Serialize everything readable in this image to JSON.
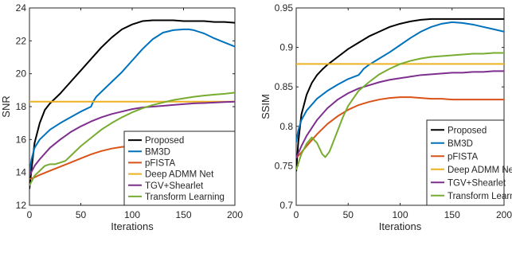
{
  "chart_data": [
    {
      "type": "line",
      "title": "",
      "xlabel": "Iterations",
      "ylabel": "SNR",
      "xlim": [
        0,
        200
      ],
      "ylim": [
        12,
        24
      ],
      "xticks": [
        0,
        50,
        100,
        150,
        200
      ],
      "yticks": [
        12,
        14,
        16,
        18,
        20,
        22,
        24
      ],
      "grid": false,
      "legend": "bottom-right",
      "series": [
        {
          "name": "Proposed",
          "color": "#000000",
          "x": [
            0,
            2,
            5,
            10,
            15,
            20,
            30,
            40,
            50,
            60,
            70,
            80,
            90,
            100,
            110,
            120,
            130,
            140,
            150,
            160,
            170,
            180,
            190,
            200
          ],
          "y": [
            13.0,
            14.2,
            15.8,
            17.0,
            17.8,
            18.2,
            18.8,
            19.5,
            20.2,
            20.9,
            21.6,
            22.2,
            22.7,
            23.0,
            23.2,
            23.25,
            23.25,
            23.25,
            23.2,
            23.2,
            23.2,
            23.15,
            23.15,
            23.1
          ]
        },
        {
          "name": "BM3D",
          "color": "#0072BD",
          "x": [
            0,
            2,
            5,
            10,
            20,
            30,
            40,
            50,
            60,
            62,
            65,
            70,
            80,
            90,
            100,
            110,
            120,
            130,
            140,
            150,
            155,
            160,
            170,
            180,
            190,
            200
          ],
          "y": [
            14.0,
            14.8,
            15.5,
            16.0,
            16.6,
            17.0,
            17.35,
            17.7,
            18.0,
            18.3,
            18.6,
            18.9,
            19.5,
            20.1,
            20.8,
            21.5,
            22.1,
            22.5,
            22.65,
            22.7,
            22.7,
            22.65,
            22.45,
            22.15,
            21.9,
            21.65
          ]
        },
        {
          "name": "pFISTA",
          "color": "#D95319",
          "x": [
            0,
            5,
            10,
            20,
            30,
            40,
            50,
            60,
            70,
            80,
            90,
            100,
            110,
            120,
            130,
            140,
            150,
            160,
            170,
            180,
            190,
            200
          ],
          "y": [
            13.6,
            13.7,
            13.85,
            14.1,
            14.35,
            14.6,
            14.85,
            15.1,
            15.3,
            15.45,
            15.55,
            15.6,
            15.6,
            15.55,
            15.5,
            15.5,
            15.5,
            15.5,
            15.5,
            15.5,
            15.5,
            15.5
          ]
        },
        {
          "name": "Deep ADMM Net",
          "color": "#EDB120",
          "x": [
            0,
            200
          ],
          "y": [
            18.3,
            18.3
          ]
        },
        {
          "name": "TGV+Shearlet",
          "color": "#7E2F8E",
          "x": [
            0,
            5,
            10,
            20,
            30,
            40,
            50,
            60,
            70,
            80,
            90,
            100,
            110,
            120,
            130,
            140,
            150,
            160,
            170,
            180,
            190,
            200
          ],
          "y": [
            13.8,
            14.4,
            14.8,
            15.5,
            16.0,
            16.45,
            16.8,
            17.1,
            17.35,
            17.55,
            17.7,
            17.85,
            17.95,
            18.0,
            18.05,
            18.1,
            18.15,
            18.2,
            18.22,
            18.25,
            18.28,
            18.3
          ]
        },
        {
          "name": "Transform Learning",
          "color": "#77AC30",
          "x": [
            0,
            5,
            10,
            15,
            20,
            25,
            30,
            35,
            40,
            50,
            60,
            70,
            80,
            90,
            100,
            110,
            120,
            130,
            140,
            150,
            160,
            170,
            180,
            190,
            200
          ],
          "y": [
            13.2,
            13.8,
            14.1,
            14.4,
            14.5,
            14.5,
            14.6,
            14.7,
            15.0,
            15.6,
            16.1,
            16.6,
            17.0,
            17.35,
            17.65,
            17.9,
            18.1,
            18.25,
            18.4,
            18.5,
            18.6,
            18.67,
            18.73,
            18.78,
            18.85
          ]
        }
      ]
    },
    {
      "type": "line",
      "title": "",
      "xlabel": "Iterations",
      "ylabel": "SSIM",
      "xlim": [
        0,
        200
      ],
      "ylim": [
        0.7,
        0.95
      ],
      "xticks": [
        0,
        50,
        100,
        150,
        200
      ],
      "yticks": [
        0.7,
        0.75,
        0.8,
        0.85,
        0.9,
        0.95
      ],
      "ytick_labels": [
        "0.7",
        "0.75",
        "0.8",
        "0.85",
        "0.9",
        "0.95"
      ],
      "grid": false,
      "legend": "bottom-right",
      "series": [
        {
          "name": "Proposed",
          "color": "#000000",
          "x": [
            0,
            2,
            5,
            10,
            15,
            20,
            25,
            30,
            40,
            50,
            60,
            70,
            80,
            90,
            100,
            110,
            120,
            130,
            140,
            150,
            160,
            170,
            180,
            190,
            200
          ],
          "y": [
            0.743,
            0.78,
            0.815,
            0.84,
            0.855,
            0.865,
            0.872,
            0.878,
            0.888,
            0.898,
            0.906,
            0.914,
            0.92,
            0.926,
            0.93,
            0.933,
            0.935,
            0.936,
            0.936,
            0.936,
            0.936,
            0.936,
            0.936,
            0.936,
            0.936
          ]
        },
        {
          "name": "BM3D",
          "color": "#0072BD",
          "x": [
            0,
            2,
            5,
            10,
            20,
            30,
            40,
            50,
            60,
            62,
            65,
            70,
            80,
            90,
            100,
            110,
            120,
            130,
            140,
            150,
            160,
            170,
            180,
            190,
            200
          ],
          "y": [
            0.78,
            0.795,
            0.808,
            0.82,
            0.835,
            0.845,
            0.853,
            0.86,
            0.865,
            0.868,
            0.873,
            0.878,
            0.886,
            0.894,
            0.903,
            0.912,
            0.92,
            0.926,
            0.93,
            0.932,
            0.931,
            0.929,
            0.926,
            0.923,
            0.92
          ]
        },
        {
          "name": "pFISTA",
          "color": "#D95319",
          "x": [
            0,
            5,
            10,
            20,
            30,
            40,
            50,
            60,
            70,
            80,
            90,
            100,
            110,
            120,
            130,
            140,
            150,
            160,
            170,
            180,
            190,
            200
          ],
          "y": [
            0.76,
            0.767,
            0.775,
            0.79,
            0.803,
            0.813,
            0.821,
            0.827,
            0.831,
            0.834,
            0.836,
            0.837,
            0.837,
            0.836,
            0.835,
            0.835,
            0.834,
            0.834,
            0.834,
            0.834,
            0.834,
            0.834
          ]
        },
        {
          "name": "Deep ADMM Net",
          "color": "#EDB120",
          "x": [
            0,
            200
          ],
          "y": [
            0.879,
            0.879
          ]
        },
        {
          "name": "TGV+Shearlet",
          "color": "#7E2F8E",
          "x": [
            0,
            5,
            10,
            20,
            30,
            40,
            50,
            60,
            70,
            80,
            90,
            100,
            110,
            120,
            130,
            140,
            150,
            160,
            170,
            180,
            190,
            200
          ],
          "y": [
            0.76,
            0.775,
            0.788,
            0.808,
            0.823,
            0.834,
            0.842,
            0.848,
            0.852,
            0.856,
            0.859,
            0.861,
            0.863,
            0.865,
            0.866,
            0.867,
            0.868,
            0.868,
            0.869,
            0.869,
            0.87,
            0.87
          ]
        },
        {
          "name": "Transform Learning",
          "color": "#77AC30",
          "x": [
            0,
            5,
            10,
            15,
            20,
            25,
            28,
            32,
            35,
            40,
            45,
            50,
            60,
            70,
            80,
            90,
            100,
            110,
            120,
            130,
            140,
            150,
            160,
            170,
            180,
            190,
            200
          ],
          "y": [
            0.745,
            0.765,
            0.778,
            0.786,
            0.779,
            0.765,
            0.761,
            0.768,
            0.778,
            0.795,
            0.812,
            0.826,
            0.845,
            0.856,
            0.866,
            0.873,
            0.879,
            0.883,
            0.886,
            0.888,
            0.889,
            0.89,
            0.891,
            0.892,
            0.892,
            0.893,
            0.893
          ]
        }
      ]
    }
  ]
}
